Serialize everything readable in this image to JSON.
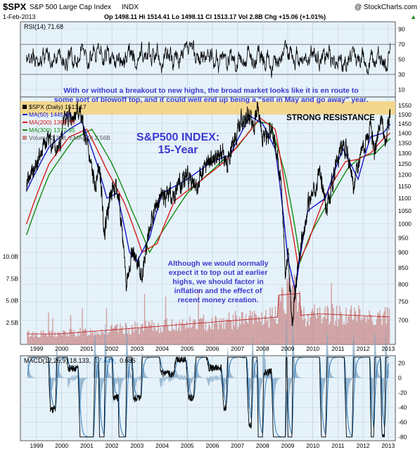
{
  "header": {
    "ticker": "$SPX",
    "name": "S&P 500 Large Cap Index",
    "exchange": "INDX",
    "date": "1-Feb-2013",
    "watermark": "@ StockCharts.com",
    "quote": "Op 1498.11  Hi 1514.41  Lo 1498.11  Cl 1513.17  Vol 2.8B  Chg +15.06 (+1.01%)",
    "quote_arrow": "▲"
  },
  "colors": {
    "panel_bg": "#e6f2fa",
    "price": "#000000",
    "ma50": "#1515c8",
    "ma200": "#d81c1c",
    "ma300": "#108a10",
    "volume": "#c98a8a",
    "resistance": "#f5d27a",
    "annotation": "#3a3ad0",
    "macd_signal": "#1a6fb8"
  },
  "chart_data": [
    {
      "type": "line",
      "title": "RSI(14) 71.68",
      "y_ticks": [
        "90",
        "70",
        "50",
        "30",
        "10"
      ],
      "ylim": [
        0,
        100
      ],
      "reference_lines": [
        70,
        30
      ],
      "last": 71.68
    },
    {
      "type": "line",
      "title": "$SPX (Daily) 1513.17",
      "x_ticks": [
        "1999",
        "2000",
        "2001",
        "2002",
        "2003",
        "2004",
        "2005",
        "2006",
        "2007",
        "2008",
        "2009",
        "2010",
        "2011",
        "2012",
        "2013"
      ],
      "y_ticks": [
        "1550",
        "1500",
        "1450",
        "1400",
        "1350",
        "1300",
        "1250",
        "1200",
        "1150",
        "1100",
        "1050",
        "1000",
        "950",
        "900",
        "850",
        "800",
        "750",
        "700"
      ],
      "volume_ticks": [
        "10.0B",
        "7.5B",
        "5.0B",
        "2.5B"
      ],
      "y_scale": "log",
      "ylim": [
        640,
        1600
      ],
      "legend": [
        {
          "label": "$SPX (Daily) 1513.17",
          "color": "#000000"
        },
        {
          "label": "MA(50) 1445.65",
          "color": "#1515c8"
        },
        {
          "label": "MA(200) 1399.75",
          "color": "#d81c1c"
        },
        {
          "label": "MA(300) 1372.95",
          "color": "#108a10"
        },
        {
          "label": "Volume 2.79B, EMA(60) 2.56B",
          "color": "#c98a8a"
        }
      ],
      "series": [
        {
          "name": "$SPX (Daily)",
          "x": [
            1998.6,
            1999.0,
            1999.5,
            1999.8,
            2000.2,
            2000.7,
            2001.0,
            2001.3,
            2001.5,
            2001.7,
            2002.0,
            2002.3,
            2002.55,
            2002.8,
            2003.2,
            2003.5,
            2003.9,
            2004.5,
            2005.0,
            2005.3,
            2005.8,
            2006.4,
            2006.6,
            2007.0,
            2007.4,
            2007.6,
            2007.8,
            2008.0,
            2008.4,
            2008.7,
            2008.9,
            2009.0,
            2009.18,
            2009.5,
            2009.8,
            2010.3,
            2010.55,
            2011.0,
            2011.3,
            2011.6,
            2011.8,
            2012.0,
            2012.3,
            2012.45,
            2012.7,
            2012.9,
            2013.08
          ],
          "values": [
            1150,
            1250,
            1380,
            1300,
            1480,
            1520,
            1330,
            1150,
            1230,
            980,
            1150,
            1100,
            800,
            900,
            830,
            980,
            1100,
            1120,
            1200,
            1150,
            1250,
            1300,
            1250,
            1420,
            1500,
            1420,
            1560,
            1380,
            1400,
            1200,
            850,
            900,
            680,
            920,
            1060,
            1200,
            1050,
            1280,
            1340,
            1150,
            1240,
            1330,
            1420,
            1300,
            1460,
            1360,
            1513
          ]
        },
        {
          "name": "MA(50)",
          "x": [
            1998.6,
            1999.5,
            2000.3,
            2000.8,
            2001.4,
            2001.8,
            2002.2,
            2002.7,
            2003.0,
            2003.5,
            2004.0,
            2005.0,
            2006.0,
            2006.7,
            2007.5,
            2008.0,
            2008.5,
            2009.0,
            2009.3,
            2009.8,
            2010.5,
            2011.2,
            2011.8,
            2012.3,
            2012.8,
            2013.08
          ],
          "values": [
            1130,
            1330,
            1420,
            1460,
            1250,
            1100,
            1120,
            900,
            870,
            950,
            1120,
            1180,
            1260,
            1290,
            1490,
            1450,
            1320,
            880,
            780,
            1050,
            1100,
            1320,
            1180,
            1380,
            1400,
            1446
          ]
        },
        {
          "name": "MA(200)",
          "x": [
            1998.6,
            1999.5,
            2000.3,
            2001.0,
            2001.8,
            2002.5,
            2003.2,
            2003.8,
            2004.5,
            2005.5,
            2006.5,
            2007.3,
            2007.9,
            2008.5,
            2009.0,
            2009.4,
            2009.8,
            2010.5,
            2011.3,
            2011.8,
            2012.3,
            2012.8,
            2013.08
          ],
          "values": [
            1000,
            1250,
            1380,
            1420,
            1220,
            1080,
            900,
            930,
            1090,
            1170,
            1260,
            1380,
            1480,
            1420,
            1070,
            860,
            930,
            1110,
            1260,
            1270,
            1300,
            1370,
            1400
          ]
        },
        {
          "name": "MA(300)",
          "x": [
            1998.6,
            1999.5,
            2000.5,
            2001.2,
            2002.0,
            2002.8,
            2003.5,
            2004.2,
            2005.0,
            2006.0,
            2007.0,
            2007.8,
            2008.3,
            2008.9,
            2009.5,
            2009.9,
            2010.6,
            2011.4,
            2011.9,
            2012.5,
            2013.08
          ],
          "values": [
            960,
            1200,
            1370,
            1420,
            1250,
            1050,
            900,
            1000,
            1120,
            1220,
            1330,
            1460,
            1450,
            1200,
            870,
            960,
            1080,
            1230,
            1280,
            1300,
            1373
          ]
        }
      ],
      "annotations": [
        "With or without a breakout to new highs, the broad market looks like it is en route to",
        "some sort of blowoff top, and it could well end up being a “sell in May and go away” year.",
        "S&P500 INDEX:",
        "15-Year",
        "STRONG RESISTANCE",
        "Although we would normally",
        "expect it to top out at earlier",
        "highs, we should factor in",
        "inflation and the effect of",
        "recent money creation."
      ],
      "resistance_band": [
        1500,
        1575
      ]
    },
    {
      "type": "line",
      "title": "MACD(12,26,9) 18.133, 17.449, 0.685",
      "legend": [
        {
          "label": "MACD(12,26,9) 18.133,",
          "color": "#000000"
        },
        {
          "label": "17.449,",
          "color": "#1a6fb8"
        },
        {
          "label": "0.685",
          "color": "#000000"
        }
      ],
      "y_ticks": [
        "20",
        "0",
        "-20",
        "-40",
        "-60",
        "-80"
      ],
      "ylim": [
        -85,
        30
      ],
      "x_ticks": [
        "1999",
        "2000",
        "2001",
        "2002",
        "2003",
        "2004",
        "2005",
        "2006",
        "2007",
        "2008",
        "2009",
        "2010",
        "2011",
        "2012",
        "2013"
      ]
    }
  ]
}
